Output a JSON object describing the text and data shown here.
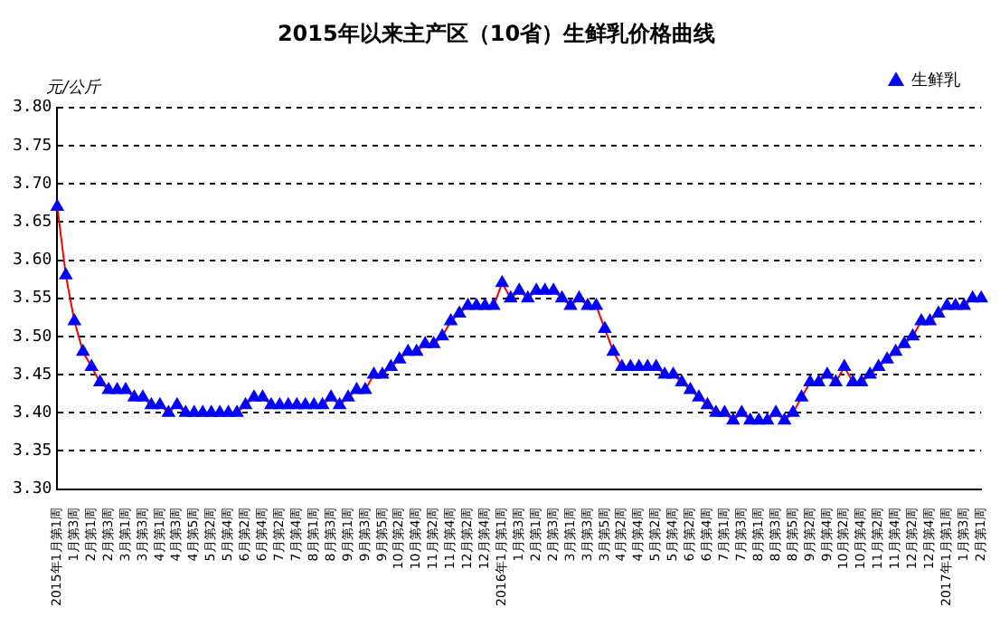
{
  "chart_data": {
    "type": "line",
    "title": "2015年以来主产区（10省）生鲜乳价格曲线",
    "ylabel": "元/公斤",
    "categories": [
      "2015年1月第1周",
      null,
      "1月第3周",
      null,
      "2月第1周",
      null,
      "2月第3周",
      null,
      "3月第1周",
      null,
      "3月第3周",
      null,
      "4月第1周",
      null,
      "4月第3周",
      null,
      "4月第5周",
      null,
      "5月第2周",
      null,
      "5月第4周",
      null,
      "6月第2周",
      null,
      "6月第4周",
      null,
      "7月第2周",
      null,
      "7月第4周",
      null,
      "8月第1周",
      null,
      "8月第3周",
      null,
      "9月第1周",
      null,
      "9月第3周",
      null,
      "9月第5周",
      null,
      "10月第2周",
      null,
      "10月第4周",
      null,
      "11月第2周",
      null,
      "11月第4周",
      null,
      "12月第2周",
      null,
      "12月第4周",
      null,
      "2016年1月第1周",
      null,
      "1月第3周",
      null,
      "2月第1周",
      null,
      "2月第3周",
      null,
      "3月第1周",
      null,
      "3月第3周",
      null,
      "3月第5周",
      null,
      "4月第2周",
      null,
      "4月第4周",
      null,
      "5月第2周",
      null,
      "5月第4周",
      null,
      "6月第2周",
      null,
      "6月第4周",
      null,
      "7月第1周",
      null,
      "7月第3周",
      null,
      "8月第1周",
      null,
      "8月第3周",
      null,
      "8月第5周",
      null,
      "9月第2周",
      null,
      "9月第4周",
      null,
      "10月第2周",
      null,
      "10月第4周",
      null,
      "11月第2周",
      null,
      "11月第4周",
      null,
      "12月第2周",
      null,
      "12月第4周",
      null,
      "2017年1月第1周",
      null,
      "1月第3周",
      null,
      "2月第1周"
    ],
    "series": [
      {
        "name": "生鲜乳",
        "color": "#ff0000",
        "colors": [
          "#0000ff",
          "#0000ff",
          "#0000ff",
          "#0000ff",
          "#0000ff",
          "#0000ff",
          "#0000ff",
          "#0000ff",
          "#0000ff",
          "#0000ff",
          "#0000ff",
          "#0000ff",
          "#0000ff",
          "#0000ff",
          "#0000ff",
          "#0000ff",
          "#0000ff",
          "#0000ff",
          "#0000ff",
          "#0000ff",
          "#0000ff",
          "#0000ff",
          "#0000ff",
          "#0000ff",
          "#0000ff",
          "#0000ff",
          "#0000ff",
          "#0000ff",
          "#0000ff",
          "#0000ff",
          "#0000ff",
          "#0000ff",
          "#0000ff",
          "#0000ff",
          "#0000ff",
          "#0000ff",
          "#0000ff",
          "#0000ff",
          "#0000ff",
          "#0000ff",
          "#0000ff",
          "#0000ff",
          "#0000ff",
          "#0000ff",
          "#0000ff",
          "#0000ff",
          "#0000ff",
          "#0000ff",
          "#0000ff",
          "#0000ff",
          "#0000ff",
          "#0000ff",
          "#0000ff",
          "#0000ff",
          "#0000ff",
          "#0000ff",
          "#0000ff",
          "#0000ff",
          "#0000ff",
          "#0000ff",
          "#0000ff",
          "#0000ff",
          "#0000ff",
          "#0000ff",
          "#0000ff",
          "#0000ff",
          "#0000ff",
          "#0000ff",
          "#0000ff",
          "#0000ff",
          "#0000ff",
          "#0000ff",
          "#0000ff",
          "#0000ff",
          "#0000ff",
          "#0000ff",
          "#0000ff",
          "#0000ff",
          "#0000ff",
          "#0000ff",
          "#0000ff",
          "#0000ff",
          "#0000ff",
          "#0000ff",
          "#0000ff",
          "#0000ff",
          "#0000ff",
          "#0000ff",
          "#0000ff",
          "#0000ff",
          "#0000ff",
          "#0000ff",
          "#0000ff",
          "#0000ff",
          "#0000ff",
          "#0000ff",
          "#0000ff",
          "#0000ff",
          "#0000ff",
          "#0000ff",
          "#0000ff",
          "#0000ff",
          "#0000ff",
          "#0000ff",
          "#0000ff",
          "#0000ff",
          "#0000ff",
          "#0000ff",
          "#0000ff"
        ],
        "values": [
          3.67,
          3.58,
          3.52,
          3.48,
          3.46,
          3.44,
          3.43,
          3.43,
          3.43,
          3.42,
          3.42,
          3.41,
          3.41,
          3.4,
          3.41,
          3.4,
          3.4,
          3.4,
          3.4,
          3.4,
          3.4,
          3.4,
          3.41,
          3.42,
          3.42,
          3.41,
          3.41,
          3.41,
          3.41,
          3.41,
          3.41,
          3.41,
          3.42,
          3.41,
          3.42,
          3.43,
          3.43,
          3.45,
          3.45,
          3.46,
          3.47,
          3.48,
          3.48,
          3.49,
          3.49,
          3.5,
          3.52,
          3.53,
          3.54,
          3.54,
          3.54,
          3.54,
          3.57,
          3.55,
          3.56,
          3.55,
          3.56,
          3.56,
          3.56,
          3.55,
          3.54,
          3.55,
          3.54,
          3.54,
          3.51,
          3.48,
          3.46,
          3.46,
          3.46,
          3.46,
          3.46,
          3.45,
          3.45,
          3.44,
          3.43,
          3.42,
          3.41,
          3.4,
          3.4,
          3.39,
          3.4,
          3.39,
          3.39,
          3.39,
          3.4,
          3.39,
          3.4,
          3.42,
          3.44,
          3.44,
          3.45,
          3.44,
          3.46,
          3.44,
          3.44,
          3.45,
          3.46,
          3.47,
          3.48,
          3.49,
          3.5,
          3.52,
          3.52,
          3.53,
          3.54,
          3.54,
          3.54,
          3.55,
          3.55
        ]
      }
    ],
    "ylim": [
      3.3,
      3.8
    ],
    "yticks": [
      {
        "value": 3.3,
        "label": "3.30"
      },
      {
        "value": 3.35,
        "label": "3.35"
      },
      {
        "value": 3.4,
        "label": "3.40"
      },
      {
        "value": 3.45,
        "label": "3.45"
      },
      {
        "value": 3.5,
        "label": "3.50"
      },
      {
        "value": 3.55,
        "label": "3.55"
      },
      {
        "value": 3.6,
        "label": "3.60"
      },
      {
        "value": 3.65,
        "label": "3.65"
      },
      {
        "value": 3.7,
        "label": "3.70"
      },
      {
        "value": 3.75,
        "label": "3.75"
      },
      {
        "value": 3.8,
        "label": "3.80"
      }
    ],
    "grid": "y",
    "legend": "top right",
    "marker": "triangle",
    "line_style": "solid"
  }
}
